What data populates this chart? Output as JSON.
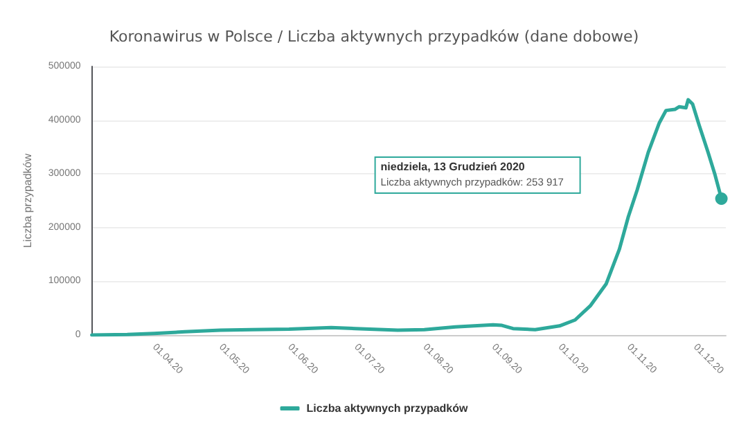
{
  "chart_data": {
    "type": "line",
    "title": "Koronawirus w Polsce / Liczba aktywnych przypadków (dane dobowe)",
    "ylabel": "Liczba przypadków",
    "x": [
      "2020-03-04",
      "2020-03-20",
      "2020-04-01",
      "2020-04-15",
      "2020-05-01",
      "2020-05-15",
      "2020-06-01",
      "2020-06-20",
      "2020-07-01",
      "2020-07-20",
      "2020-08-01",
      "2020-08-15",
      "2020-09-01",
      "2020-09-05",
      "2020-09-10",
      "2020-09-20",
      "2020-10-01",
      "2020-10-08",
      "2020-10-15",
      "2020-10-22",
      "2020-10-28",
      "2020-11-01",
      "2020-11-05",
      "2020-11-10",
      "2020-11-15",
      "2020-11-18",
      "2020-11-22",
      "2020-11-24",
      "2020-11-27",
      "2020-11-28",
      "2020-11-30",
      "2020-12-03",
      "2020-12-07",
      "2020-12-10",
      "2020-12-13"
    ],
    "series": [
      {
        "name": "Liczba aktywnych przypadków",
        "color": "#2ea99b",
        "values": [
          0,
          1000,
          3000,
          6000,
          9000,
          10000,
          11000,
          14000,
          12000,
          9000,
          10000,
          15000,
          19000,
          18000,
          12000,
          10000,
          17000,
          28000,
          55000,
          95000,
          160000,
          220000,
          270000,
          340000,
          395000,
          418000,
          420000,
          425000,
          423000,
          438000,
          430000,
          390000,
          340000,
          300000,
          253917
        ]
      }
    ],
    "xlim": [
      "2020-03-04",
      "2020-12-15"
    ],
    "xticks": [
      {
        "value": "2020-04-01",
        "label": "01.04.20"
      },
      {
        "value": "2020-05-01",
        "label": "01.05.20"
      },
      {
        "value": "2020-06-01",
        "label": "01.06.20"
      },
      {
        "value": "2020-07-01",
        "label": "01.07.20"
      },
      {
        "value": "2020-08-01",
        "label": "01.08.20"
      },
      {
        "value": "2020-09-01",
        "label": "01.09.20"
      },
      {
        "value": "2020-10-01",
        "label": "01.10.20"
      },
      {
        "value": "2020-11-01",
        "label": "01.11.20"
      },
      {
        "value": "2020-12-01",
        "label": "01.12.20"
      }
    ],
    "ylim": [
      0,
      500000
    ],
    "yticks": [
      0,
      100000,
      200000,
      300000,
      400000,
      500000
    ],
    "annotations": [
      "niedziela, 13 Grudzień 2020",
      "Liczba aktywnych przypadków: 253 917"
    ],
    "grid": "y",
    "legend": "bottom",
    "marker": "none",
    "line_style": "solid"
  }
}
